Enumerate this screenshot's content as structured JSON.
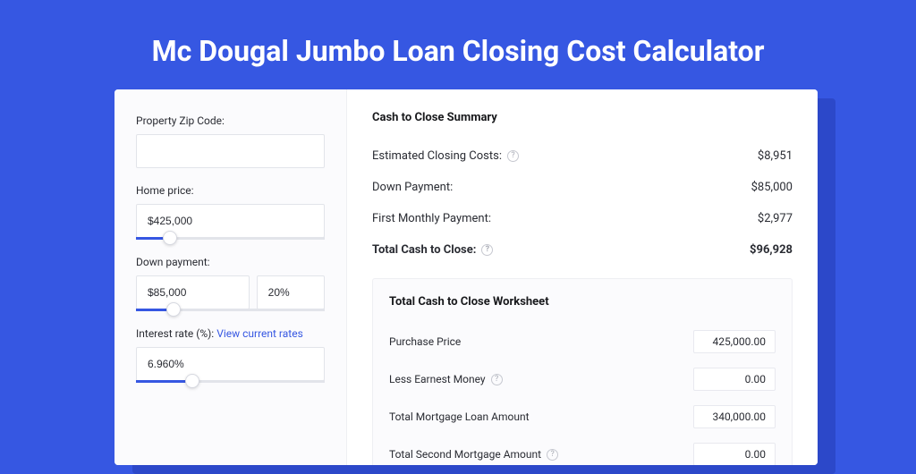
{
  "colors": {
    "page_bg": "#3657e2",
    "card_bg": "#ffffff",
    "panel_bg": "#fbfbfd",
    "border": "#e2e4ea",
    "accent": "#3657e2",
    "text": "#2a2c33",
    "shadow": "#2c48c9"
  },
  "title": "Mc Dougal Jumbo Loan Closing Cost Calculator",
  "inputs": {
    "zip": {
      "label": "Property Zip Code:",
      "value": ""
    },
    "home_price": {
      "label": "Home price:",
      "value": "$425,000",
      "slider_pct": 18
    },
    "down_payment": {
      "label": "Down payment:",
      "value": "$85,000",
      "percent": "20%",
      "slider_pct": 20
    },
    "interest_rate": {
      "label": "Interest rate (%):",
      "link": "View current rates",
      "value": "6.960%",
      "slider_pct": 30
    }
  },
  "summary": {
    "title": "Cash to Close Summary",
    "rows": [
      {
        "label": "Estimated Closing Costs:",
        "help": true,
        "value": "$8,951",
        "bold": false
      },
      {
        "label": "Down Payment:",
        "help": false,
        "value": "$85,000",
        "bold": false
      },
      {
        "label": "First Monthly Payment:",
        "help": false,
        "value": "$2,977",
        "bold": false
      },
      {
        "label": "Total Cash to Close:",
        "help": true,
        "value": "$96,928",
        "bold": true
      }
    ]
  },
  "worksheet": {
    "title": "Total Cash to Close Worksheet",
    "rows": [
      {
        "label": "Purchase Price",
        "help": false,
        "value": "425,000.00"
      },
      {
        "label": "Less Earnest Money",
        "help": true,
        "value": "0.00"
      },
      {
        "label": "Total Mortgage Loan Amount",
        "help": false,
        "value": "340,000.00"
      },
      {
        "label": "Total Second Mortgage Amount",
        "help": true,
        "value": "0.00"
      }
    ]
  }
}
